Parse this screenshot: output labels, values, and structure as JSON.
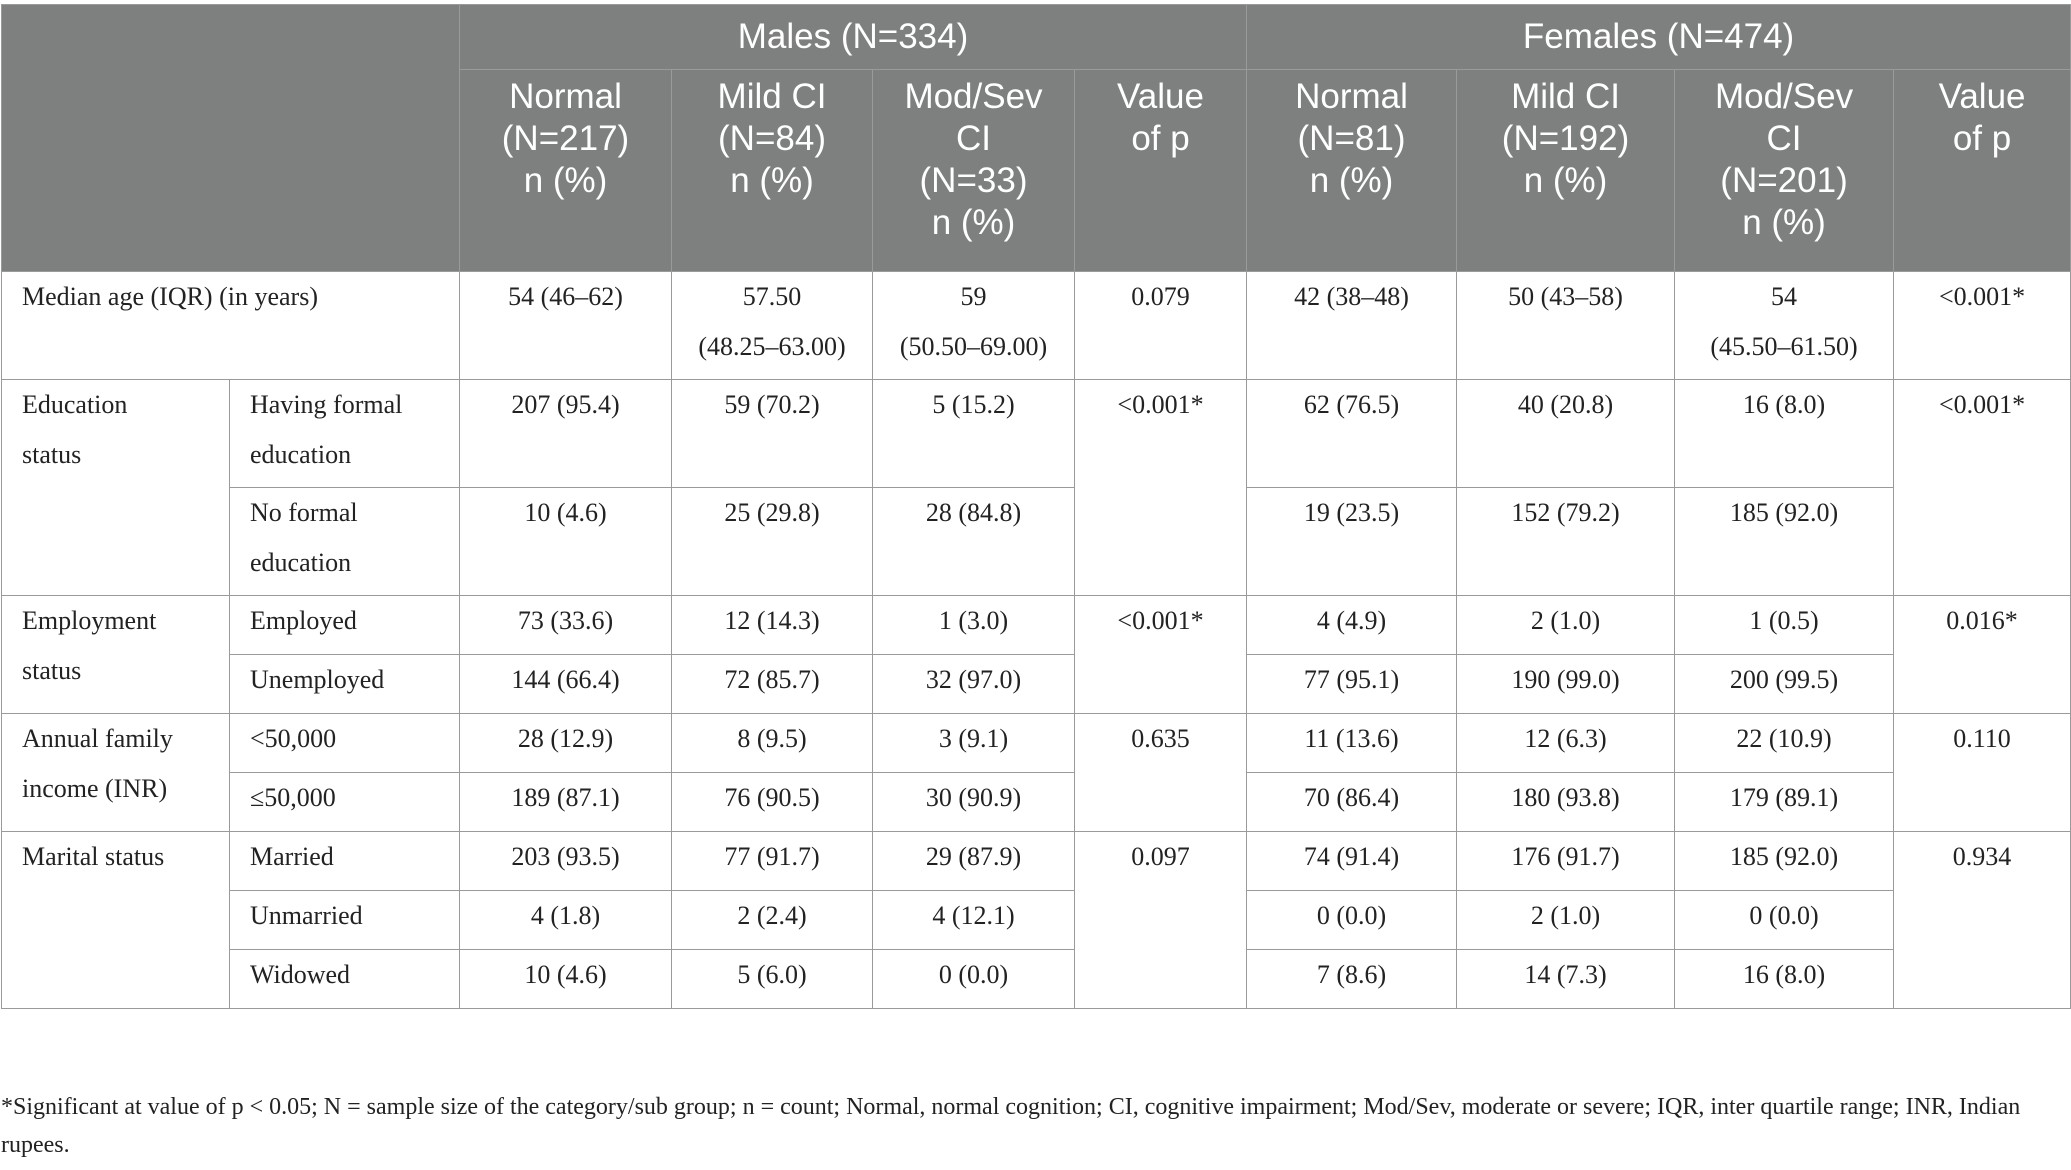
{
  "header": {
    "males": "Males (N=334)",
    "females": "Females (N=474)",
    "male_cols": [
      {
        "l1": "Normal",
        "l2": "(N=217)",
        "l3": "n (%)",
        "l4": ""
      },
      {
        "l1": "Mild CI",
        "l2": "(N=84)",
        "l3": "n (%)",
        "l4": ""
      },
      {
        "l1": "Mod/Sev",
        "l2": "CI",
        "l3": "(N=33)",
        "l4": "n (%)"
      },
      {
        "l1": "Value",
        "l2": "of p",
        "l3": "",
        "l4": ""
      }
    ],
    "female_cols": [
      {
        "l1": "Normal",
        "l2": "(N=81)",
        "l3": "n (%)",
        "l4": ""
      },
      {
        "l1": "Mild CI",
        "l2": "(N=192)",
        "l3": "n (%)",
        "l4": ""
      },
      {
        "l1": "Mod/Sev",
        "l2": "CI",
        "l3": "(N=201)",
        "l4": "n (%)"
      },
      {
        "l1": "Value",
        "l2": "of p",
        "l3": "",
        "l4": ""
      }
    ]
  },
  "rows": {
    "age": {
      "label": "Median age (IQR) (in years)",
      "m_normal": "54 (46–62)",
      "m_mild_a": "57.50",
      "m_mild_b": "(48.25–63.00)",
      "m_mod_a": "59",
      "m_mod_b": "(50.50–69.00)",
      "m_p": "0.079",
      "f_normal": "42 (38–48)",
      "f_mild": "50 (43–58)",
      "f_mod_a": "54",
      "f_mod_b": "(45.50–61.50)",
      "f_p": "<0.001*"
    },
    "education": {
      "label_a": "Education",
      "label_b": "status",
      "m_p": "<0.001*",
      "f_p": "<0.001*",
      "sub": [
        {
          "label_a": "Having formal",
          "label_b": "education",
          "m": [
            "207 (95.4)",
            "59 (70.2)",
            "5 (15.2)"
          ],
          "f": [
            "62 (76.5)",
            "40 (20.8)",
            "16 (8.0)"
          ]
        },
        {
          "label_a": "No formal",
          "label_b": "education",
          "m": [
            "10 (4.6)",
            "25 (29.8)",
            "28 (84.8)"
          ],
          "f": [
            "19 (23.5)",
            "152 (79.2)",
            "185 (92.0)"
          ]
        }
      ]
    },
    "employment": {
      "label_a": "Employment",
      "label_b": "status",
      "m_p": "<0.001*",
      "f_p": "0.016*",
      "sub": [
        {
          "label": "Employed",
          "m": [
            "73 (33.6)",
            "12 (14.3)",
            "1 (3.0)"
          ],
          "f": [
            "4 (4.9)",
            "2 (1.0)",
            "1 (0.5)"
          ]
        },
        {
          "label": "Unemployed",
          "m": [
            "144 (66.4)",
            "72 (85.7)",
            "32 (97.0)"
          ],
          "f": [
            "77 (95.1)",
            "190 (99.0)",
            "200 (99.5)"
          ]
        }
      ]
    },
    "income": {
      "label_a": "Annual family",
      "label_b": "income (INR)",
      "m_p": "0.635",
      "f_p": "0.110",
      "sub": [
        {
          "label": "<50,000",
          "m": [
            "28 (12.9)",
            "8 (9.5)",
            "3 (9.1)"
          ],
          "f": [
            "11 (13.6)",
            "12 (6.3)",
            "22 (10.9)"
          ]
        },
        {
          "label": "≤50,000",
          "m": [
            "189 (87.1)",
            "76 (90.5)",
            "30 (90.9)"
          ],
          "f": [
            "70 (86.4)",
            "180 (93.8)",
            "179 (89.1)"
          ]
        }
      ]
    },
    "marital": {
      "label": "Marital status",
      "m_p": "0.097",
      "f_p": "0.934",
      "sub": [
        {
          "label": "Married",
          "m": [
            "203 (93.5)",
            "77 (91.7)",
            "29 (87.9)"
          ],
          "f": [
            "74 (91.4)",
            "176 (91.7)",
            "185 (92.0)"
          ]
        },
        {
          "label": "Unmarried",
          "m": [
            "4 (1.8)",
            "2 (2.4)",
            "4 (12.1)"
          ],
          "f": [
            "0 (0.0)",
            "2 (1.0)",
            "0 (0.0)"
          ]
        },
        {
          "label": "Widowed",
          "m": [
            "10 (4.6)",
            "5 (6.0)",
            "0 (0.0)"
          ],
          "f": [
            "7 (8.6)",
            "14 (7.3)",
            "16 (8.0)"
          ]
        }
      ]
    }
  },
  "footnote": "*Significant at value of p < 0.05; N = sample size of the category/sub group; n = count; Normal, normal cognition; CI, cognitive impairment; Mod/Sev, moderate or severe; IQR, inter quartile range; INR, Indian rupees."
}
